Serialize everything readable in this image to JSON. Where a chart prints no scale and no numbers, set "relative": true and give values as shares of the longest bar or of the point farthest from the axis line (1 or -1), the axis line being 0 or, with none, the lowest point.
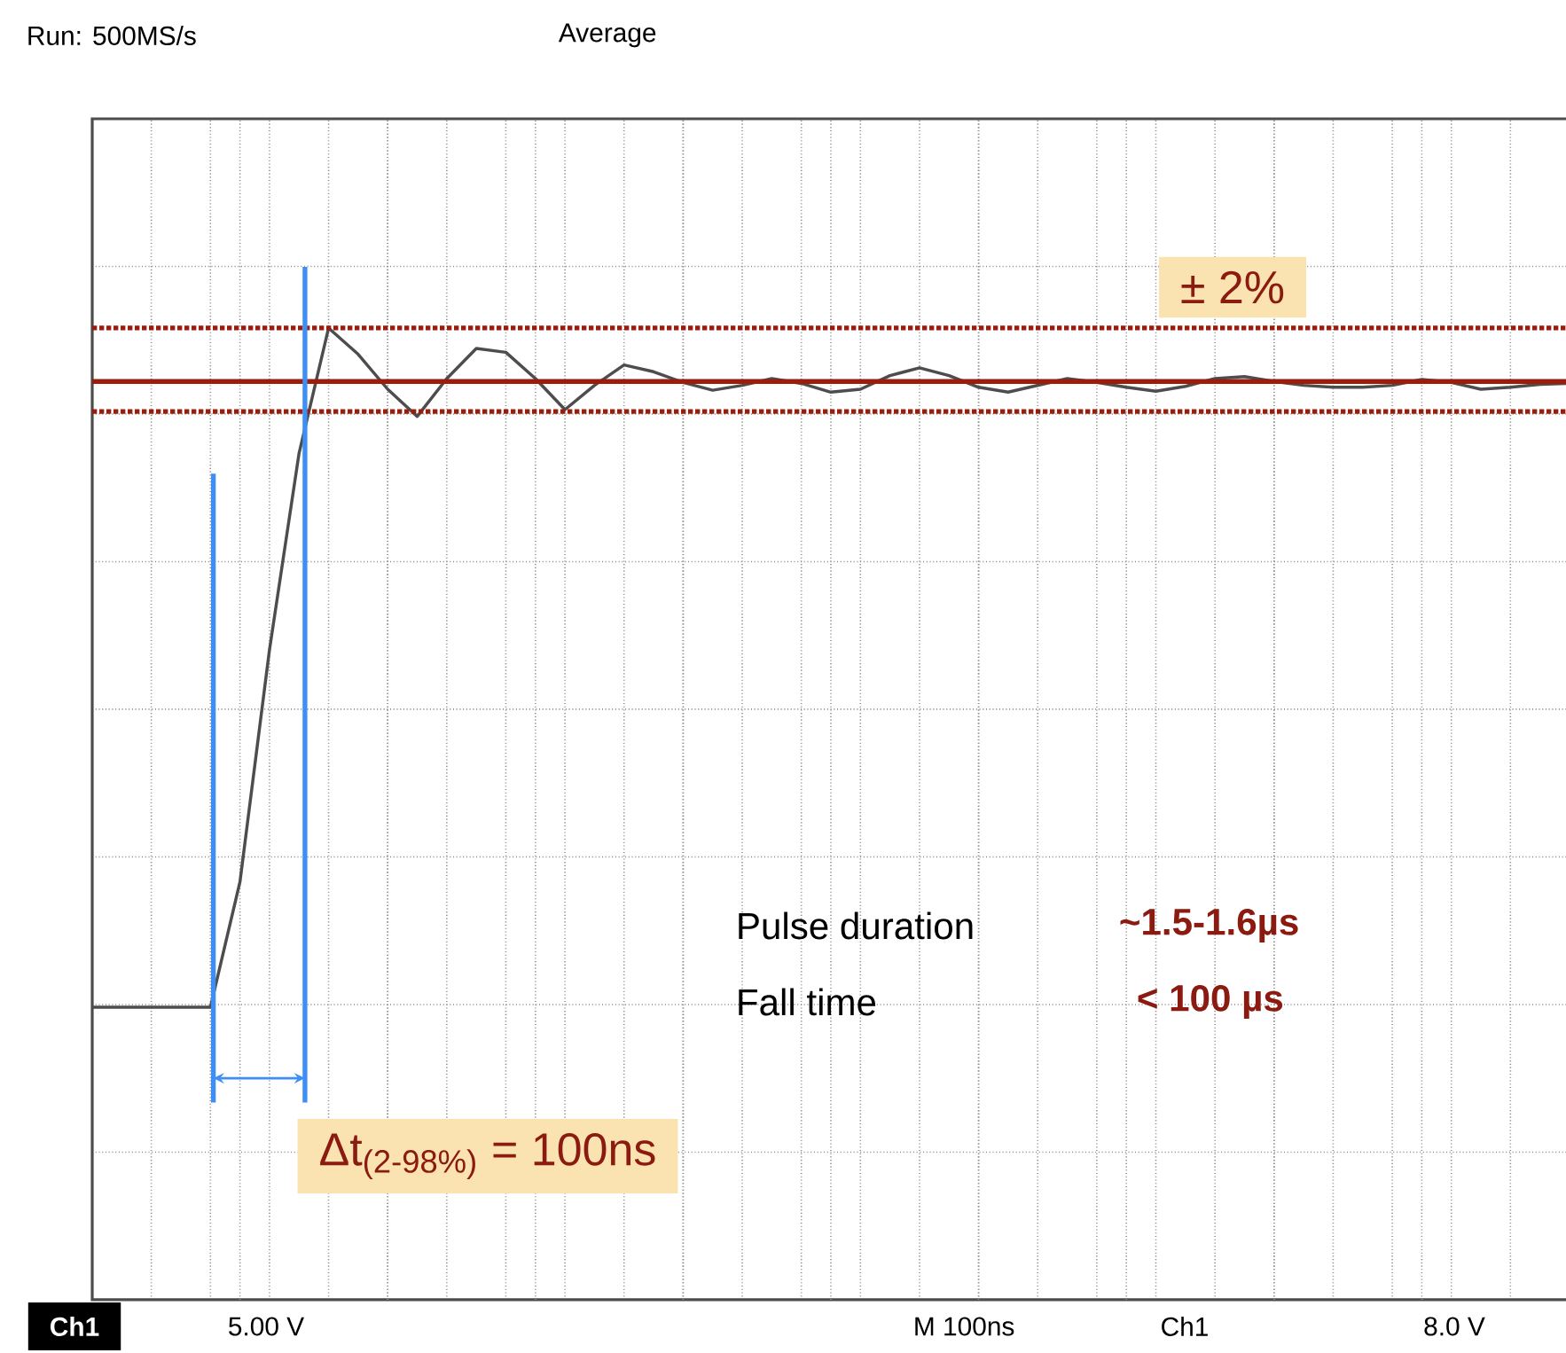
{
  "chart_data": {
    "type": "line",
    "relative": true,
    "marker": "none",
    "line_style": "solid",
    "grid": true,
    "categories": [
      null,
      null,
      null,
      null,
      null,
      null,
      null,
      null,
      null,
      null,
      null,
      null,
      null,
      null,
      null,
      null,
      null,
      null,
      null,
      null,
      null,
      null,
      null,
      null,
      null,
      null,
      null,
      null,
      null,
      null,
      null,
      null,
      null,
      null,
      null,
      null,
      null,
      null,
      null,
      null,
      null,
      null,
      null,
      null,
      null,
      null,
      null,
      null,
      null,
      null,
      null
    ],
    "series": [
      {
        "color": "#4d4d4d",
        "values": [
          0.301,
          0.301,
          0.301,
          0.301,
          0.301,
          0.43,
          0.669,
          0.871,
          1.0,
          0.973,
          0.937,
          0.909,
          0.948,
          0.979,
          0.975,
          0.948,
          0.916,
          0.941,
          0.962,
          0.955,
          0.944,
          0.936,
          0.941,
          0.948,
          0.943,
          0.934,
          0.937,
          0.951,
          0.959,
          0.951,
          0.939,
          0.934,
          0.941,
          0.948,
          0.944,
          0.939,
          0.935,
          0.94,
          0.948,
          0.95,
          0.945,
          0.941,
          0.939,
          0.939,
          0.941,
          0.947,
          0.944,
          0.937,
          0.939,
          0.942,
          0.943
        ]
      }
    ],
    "ref_lines": [
      {
        "axis": "y",
        "value": 1.0,
        "color": "#9b1c0c",
        "line_style": "dotted"
      },
      {
        "axis": "y",
        "value": 0.914,
        "color": "#9b1c0c",
        "line_style": "dotted"
      },
      {
        "axis": "y",
        "value": 0.945,
        "color": "#9b1c0c",
        "line_style": "solid"
      }
    ],
    "annotations": [
      "Run: 500MS/s",
      "Average",
      "± 2%",
      "Pulse duration",
      "~1.5-1.6µs",
      "Fall time",
      "< 100 µs",
      "Δt$_{(2-98%)}$ = 100ns",
      "Ch1",
      "5.00 V",
      "M 100ns",
      "Ch1",
      "8.0 V"
    ]
  }
}
